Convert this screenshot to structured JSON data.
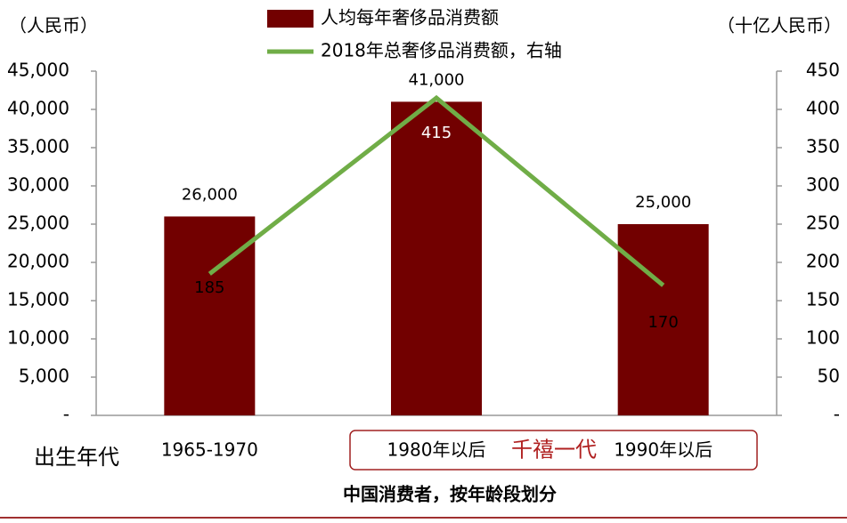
{
  "chart_data": {
    "type": "bar",
    "title": "中国消费者，按年龄段划分",
    "xlabel": "出生年代",
    "ylabel": "（人民币）",
    "y2label": "（十亿人民币）",
    "annotation": "千禧一代",
    "categories": [
      "1965-1970",
      "1980年以后",
      "1990年以后"
    ],
    "series": [
      {
        "name": "人均每年奢侈品消费额",
        "type": "bar",
        "color": "#720000",
        "values": [
          26000,
          41000,
          25000
        ],
        "value_labels": [
          "26,000",
          "41,000",
          "25,000"
        ]
      },
      {
        "name": "2018年总奢侈品消费额，右轴",
        "type": "line",
        "axis": "y2",
        "color": "#70ad47",
        "values": [
          185,
          415,
          170
        ]
      }
    ],
    "ylim": [
      0,
      45000
    ],
    "yticks": [
      {
        "value": 0,
        "label": "-"
      },
      {
        "value": 5000,
        "label": "5,000"
      },
      {
        "value": 10000,
        "label": "10,000"
      },
      {
        "value": 15000,
        "label": "15,000"
      },
      {
        "value": 20000,
        "label": "20,000"
      },
      {
        "value": 25000,
        "label": "25,000"
      },
      {
        "value": 30000,
        "label": "30,000"
      },
      {
        "value": 35000,
        "label": "35,000"
      },
      {
        "value": 40000,
        "label": "40,000"
      },
      {
        "value": 45000,
        "label": "45,000"
      }
    ],
    "y2lim": [
      0,
      450
    ],
    "y2ticks": [
      {
        "value": 0,
        "label": "-"
      },
      50,
      100,
      150,
      200,
      250,
      300,
      350,
      400,
      450
    ],
    "grid": false
  }
}
